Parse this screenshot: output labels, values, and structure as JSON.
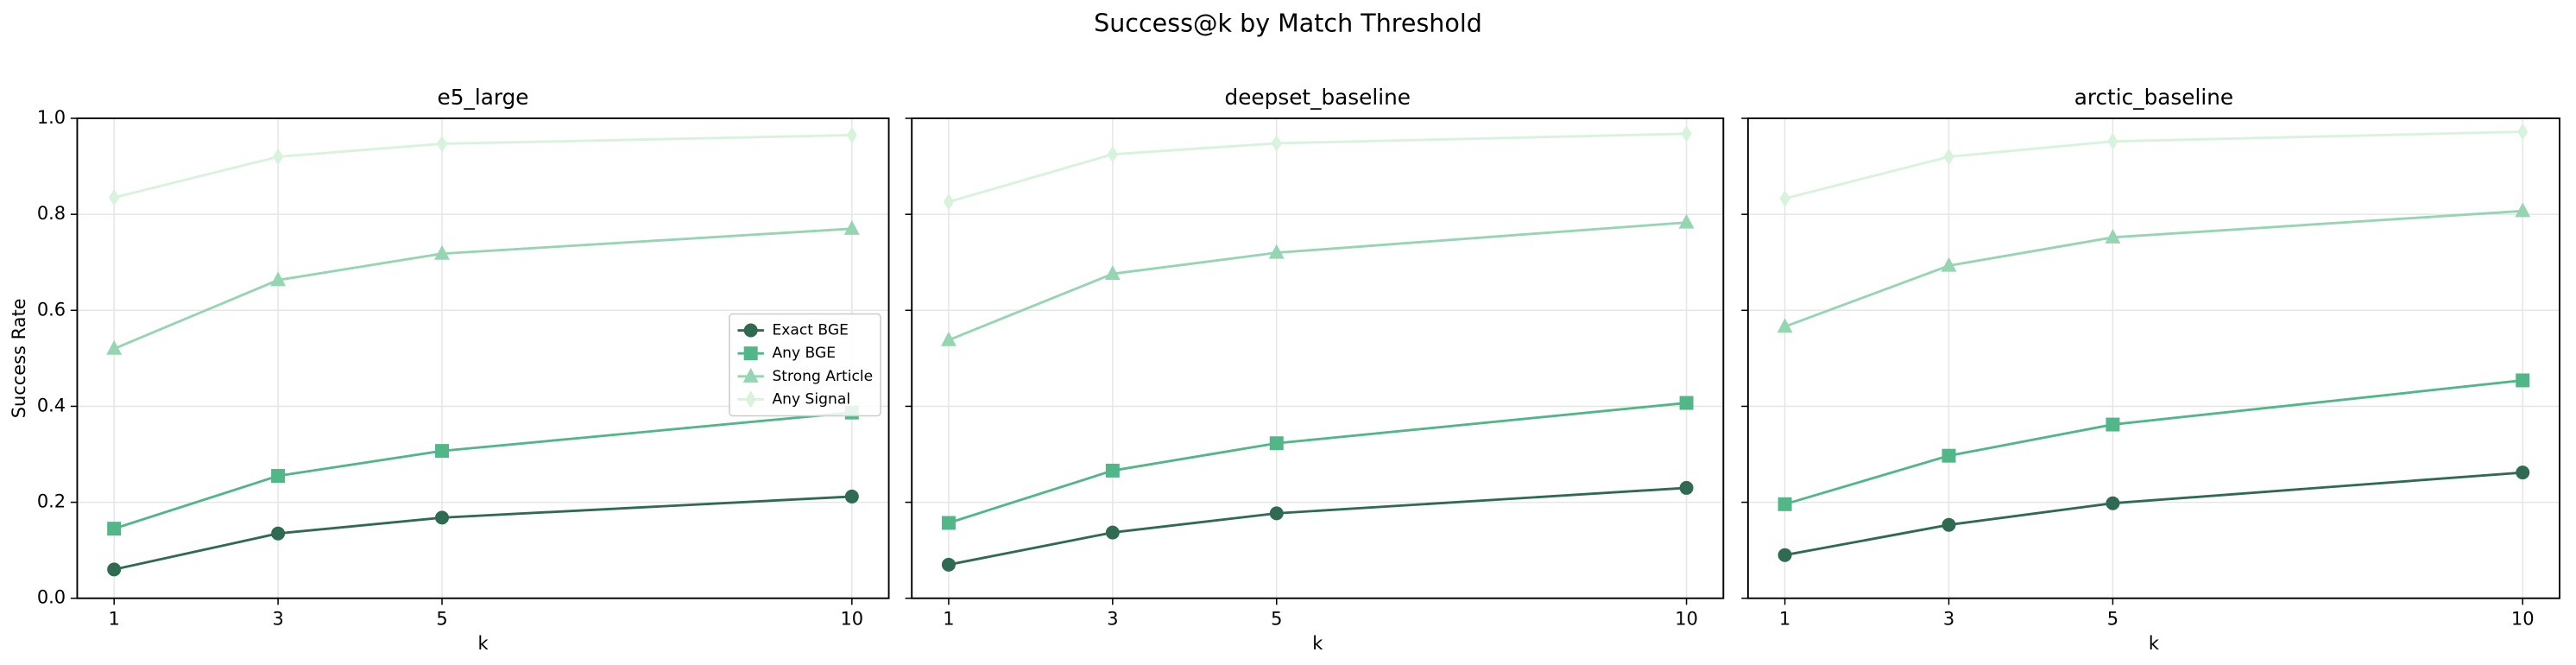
{
  "title": "Success@k by Match Threshold",
  "chart_data": [
    {
      "type": "line",
      "title": "e5_large",
      "xlabel": "k",
      "ylabel": "Success Rate",
      "x": [
        1,
        3,
        5,
        10
      ],
      "xlim": [
        0.55,
        10.45
      ],
      "xticks": [
        1,
        3,
        5,
        10
      ],
      "ylim": [
        0,
        1
      ],
      "yticks": [
        {
          "value": 0,
          "label": "0.0"
        },
        0.2,
        0.4,
        0.6,
        0.8,
        {
          "value": 1,
          "label": "1.0"
        }
      ],
      "grid": true,
      "legend": "center right",
      "series": [
        {
          "name": "Exact BGE",
          "color": "#2f6b52",
          "marker": "circle",
          "values": [
            0.06,
            0.135,
            0.168,
            0.212
          ]
        },
        {
          "name": "Any BGE",
          "color": "#52b788",
          "marker": "square",
          "values": [
            0.145,
            0.255,
            0.307,
            0.387
          ]
        },
        {
          "name": "Strong Article",
          "color": "#95d5b2",
          "marker": "triangle",
          "values": [
            0.52,
            0.663,
            0.718,
            0.77
          ]
        },
        {
          "name": "Any Signal",
          "color": "#d8f3dc",
          "marker": "diamond",
          "values": [
            0.835,
            0.92,
            0.947,
            0.965
          ]
        }
      ]
    },
    {
      "type": "line",
      "title": "deepset_baseline",
      "xlabel": "k",
      "x": [
        1,
        3,
        5,
        10
      ],
      "xlim": [
        0.55,
        10.45
      ],
      "xticks": [
        1,
        3,
        5,
        10
      ],
      "ylim": [
        0,
        1
      ],
      "yticks": [
        0,
        0.2,
        0.4,
        0.6,
        0.8,
        1
      ],
      "show_yticklabels": false,
      "grid": true,
      "series": [
        {
          "color": "#2f6b52",
          "marker": "circle",
          "values": [
            0.07,
            0.137,
            0.177,
            0.23
          ]
        },
        {
          "color": "#52b788",
          "marker": "square",
          "values": [
            0.157,
            0.266,
            0.323,
            0.407
          ]
        },
        {
          "color": "#95d5b2",
          "marker": "triangle",
          "values": [
            0.538,
            0.676,
            0.72,
            0.783
          ]
        },
        {
          "color": "#d8f3dc",
          "marker": "diamond",
          "values": [
            0.826,
            0.925,
            0.948,
            0.968
          ]
        }
      ]
    },
    {
      "type": "line",
      "title": "arctic_baseline",
      "xlabel": "k",
      "x": [
        1,
        3,
        5,
        10
      ],
      "xlim": [
        0.55,
        10.45
      ],
      "xticks": [
        1,
        3,
        5,
        10
      ],
      "ylim": [
        0,
        1
      ],
      "yticks": [
        0,
        0.2,
        0.4,
        0.6,
        0.8,
        1
      ],
      "show_yticklabels": false,
      "grid": true,
      "series": [
        {
          "color": "#2f6b52",
          "marker": "circle",
          "values": [
            0.09,
            0.153,
            0.198,
            0.262
          ]
        },
        {
          "color": "#52b788",
          "marker": "square",
          "values": [
            0.196,
            0.297,
            0.362,
            0.454
          ]
        },
        {
          "color": "#95d5b2",
          "marker": "triangle",
          "values": [
            0.566,
            0.693,
            0.752,
            0.807
          ]
        },
        {
          "color": "#d8f3dc",
          "marker": "diamond",
          "values": [
            0.833,
            0.92,
            0.952,
            0.972
          ]
        }
      ]
    }
  ]
}
